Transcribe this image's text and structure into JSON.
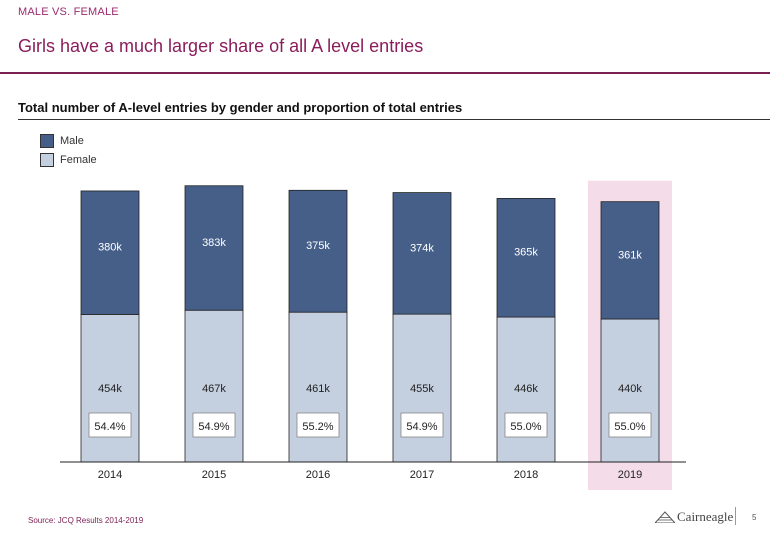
{
  "header": {
    "section_tag": "MALE VS. FEMALE",
    "title": "Girls have a much larger share of all A level entries"
  },
  "chart_data": {
    "type": "bar",
    "stacked": true,
    "title": "Total number of A-level entries by gender and proportion of total entries",
    "categories": [
      "2014",
      "2015",
      "2016",
      "2017",
      "2018",
      "2019"
    ],
    "series": [
      {
        "name": "Female",
        "values": [
          454,
          467,
          461,
          455,
          446,
          440
        ],
        "labels": [
          "454k",
          "467k",
          "461k",
          "455k",
          "446k",
          "440k"
        ],
        "color": "#c4cfdf"
      },
      {
        "name": "Male",
        "values": [
          380,
          383,
          375,
          374,
          365,
          361
        ],
        "labels": [
          "380k",
          "383k",
          "375k",
          "374k",
          "365k",
          "361k"
        ],
        "color": "#455f89"
      }
    ],
    "female_share_labels": [
      "54.4%",
      "54.9%",
      "55.2%",
      "54.9%",
      "55.0%",
      "55.0%"
    ],
    "highlighted_category": "2019",
    "highlight_color": "#f4dce9",
    "legend_position": "top-left",
    "grid": false
  },
  "legend": {
    "male_label": "Male",
    "female_label": "Female",
    "male_color": "#455f89",
    "female_color": "#c4cfdf"
  },
  "footer": {
    "source": "Source: JCQ Results 2014-2019",
    "logo_text": "Cairneagle",
    "page_number": "5"
  }
}
